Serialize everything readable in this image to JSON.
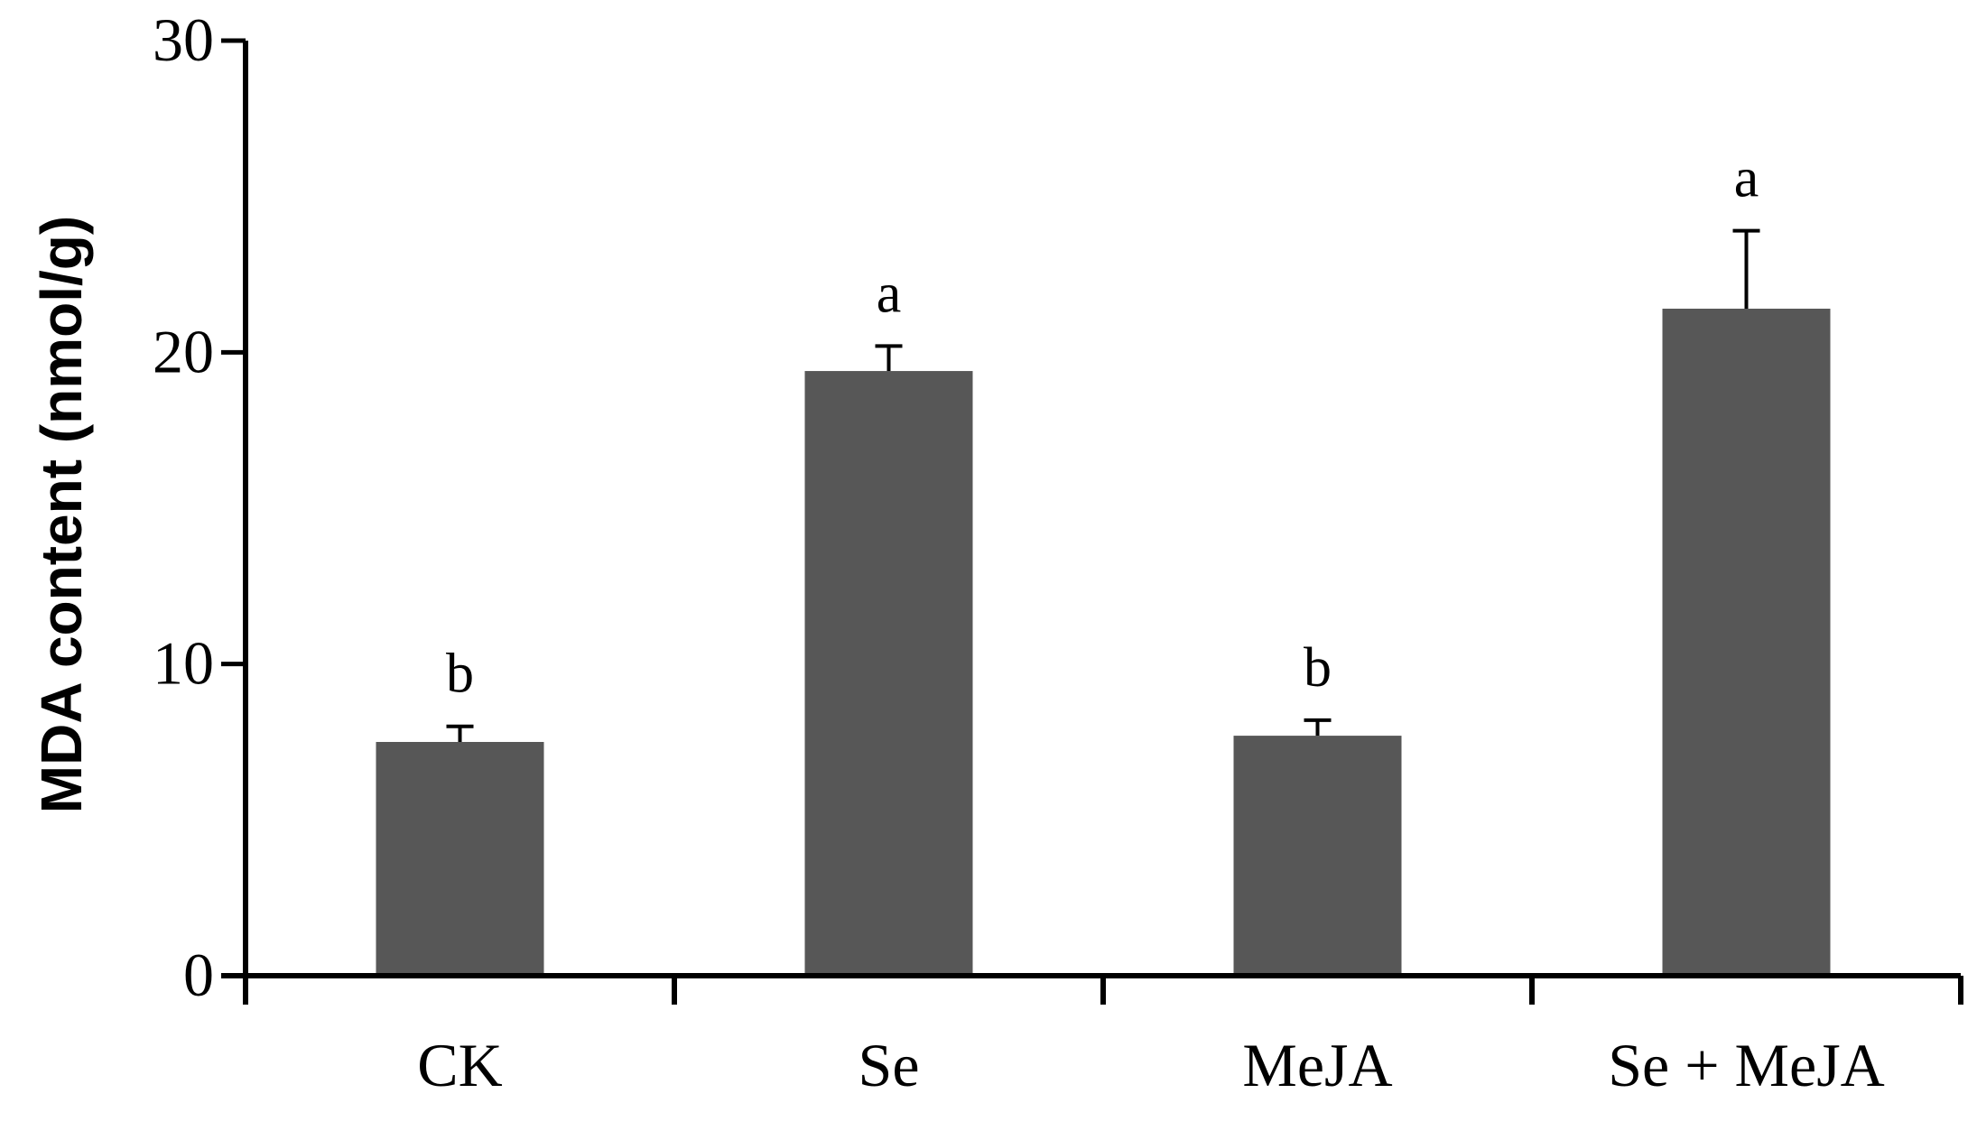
{
  "chart_data": {
    "type": "bar",
    "title": "",
    "xlabel": "",
    "ylabel": "MDA content (nmol/g)",
    "categories": [
      "CK",
      "Se",
      "MeJA",
      "Se + MeJA"
    ],
    "values": [
      7.5,
      19.4,
      7.7,
      21.4
    ],
    "error": [
      0.5,
      0.8,
      0.5,
      2.5
    ],
    "significance": [
      "b",
      "a",
      "b",
      "a"
    ],
    "ylim": [
      0,
      30
    ],
    "yticks": [
      0,
      10,
      20,
      30
    ],
    "grid": false,
    "legend": "none",
    "bar_color": "#575757",
    "axis_color": "#000000"
  }
}
